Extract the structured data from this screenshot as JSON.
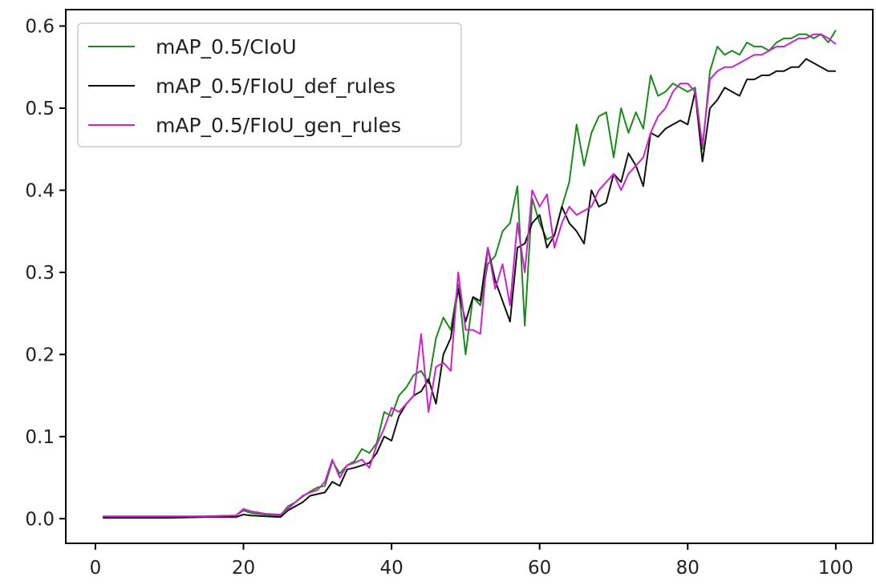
{
  "chart_data": {
    "type": "line",
    "title": "",
    "xlabel": "",
    "ylabel": "",
    "xlim": [
      -4,
      105
    ],
    "ylim": [
      -0.03,
      0.62
    ],
    "grid": false,
    "legend_position": "top-left",
    "x_ticks": [
      0,
      20,
      40,
      60,
      80,
      100
    ],
    "x_tick_labels": [
      "0",
      "20",
      "40",
      "60",
      "80",
      "100"
    ],
    "y_ticks": [
      0.0,
      0.1,
      0.2,
      0.3,
      0.4,
      0.5,
      0.6
    ],
    "y_tick_labels": [
      "0.0",
      "0.1",
      "0.2",
      "0.3",
      "0.4",
      "0.5",
      "0.6"
    ],
    "series": [
      {
        "name": "mAP_0.5/CIoU",
        "color": "#1a8a1a",
        "points": [
          [
            1,
            0.002
          ],
          [
            5,
            0.002
          ],
          [
            10,
            0.002
          ],
          [
            15,
            0.003
          ],
          [
            19,
            0.004
          ],
          [
            20,
            0.01
          ],
          [
            21,
            0.007
          ],
          [
            23,
            0.005
          ],
          [
            25,
            0.004
          ],
          [
            26,
            0.015
          ],
          [
            27,
            0.02
          ],
          [
            28,
            0.027
          ],
          [
            29,
            0.033
          ],
          [
            30,
            0.038
          ],
          [
            31,
            0.04
          ],
          [
            32,
            0.07
          ],
          [
            33,
            0.055
          ],
          [
            34,
            0.065
          ],
          [
            35,
            0.07
          ],
          [
            36,
            0.085
          ],
          [
            37,
            0.08
          ],
          [
            38,
            0.092
          ],
          [
            39,
            0.13
          ],
          [
            40,
            0.125
          ],
          [
            41,
            0.15
          ],
          [
            42,
            0.16
          ],
          [
            43,
            0.175
          ],
          [
            44,
            0.18
          ],
          [
            45,
            0.165
          ],
          [
            46,
            0.22
          ],
          [
            47,
            0.245
          ],
          [
            48,
            0.23
          ],
          [
            49,
            0.285
          ],
          [
            50,
            0.2
          ],
          [
            51,
            0.27
          ],
          [
            52,
            0.26
          ],
          [
            53,
            0.31
          ],
          [
            54,
            0.32
          ],
          [
            55,
            0.35
          ],
          [
            56,
            0.36
          ],
          [
            57,
            0.405
          ],
          [
            58,
            0.235
          ],
          [
            59,
            0.39
          ],
          [
            60,
            0.36
          ],
          [
            61,
            0.34
          ],
          [
            62,
            0.345
          ],
          [
            63,
            0.38
          ],
          [
            64,
            0.41
          ],
          [
            65,
            0.48
          ],
          [
            66,
            0.43
          ],
          [
            67,
            0.47
          ],
          [
            68,
            0.49
          ],
          [
            69,
            0.495
          ],
          [
            70,
            0.44
          ],
          [
            71,
            0.5
          ],
          [
            72,
            0.47
          ],
          [
            73,
            0.495
          ],
          [
            74,
            0.475
          ],
          [
            75,
            0.54
          ],
          [
            76,
            0.515
          ],
          [
            77,
            0.52
          ],
          [
            78,
            0.53
          ],
          [
            79,
            0.525
          ],
          [
            80,
            0.52
          ],
          [
            81,
            0.525
          ],
          [
            82,
            0.45
          ],
          [
            83,
            0.545
          ],
          [
            84,
            0.575
          ],
          [
            85,
            0.565
          ],
          [
            86,
            0.57
          ],
          [
            87,
            0.565
          ],
          [
            88,
            0.58
          ],
          [
            89,
            0.575
          ],
          [
            90,
            0.575
          ],
          [
            91,
            0.57
          ],
          [
            92,
            0.58
          ],
          [
            93,
            0.585
          ],
          [
            94,
            0.585
          ],
          [
            95,
            0.59
          ],
          [
            96,
            0.59
          ],
          [
            97,
            0.585
          ],
          [
            98,
            0.59
          ],
          [
            99,
            0.58
          ],
          [
            100,
            0.595
          ]
        ]
      },
      {
        "name": "mAP_0.5/FIoU_def_rules",
        "color": "#111111",
        "points": [
          [
            1,
            0.001
          ],
          [
            5,
            0.001
          ],
          [
            10,
            0.001
          ],
          [
            15,
            0.002
          ],
          [
            19,
            0.002
          ],
          [
            20,
            0.005
          ],
          [
            21,
            0.004
          ],
          [
            23,
            0.003
          ],
          [
            25,
            0.002
          ],
          [
            26,
            0.01
          ],
          [
            27,
            0.015
          ],
          [
            28,
            0.02
          ],
          [
            29,
            0.028
          ],
          [
            30,
            0.03
          ],
          [
            31,
            0.032
          ],
          [
            32,
            0.045
          ],
          [
            33,
            0.04
          ],
          [
            34,
            0.06
          ],
          [
            35,
            0.062
          ],
          [
            36,
            0.065
          ],
          [
            37,
            0.068
          ],
          [
            38,
            0.08
          ],
          [
            39,
            0.1
          ],
          [
            40,
            0.095
          ],
          [
            41,
            0.125
          ],
          [
            42,
            0.14
          ],
          [
            43,
            0.15
          ],
          [
            44,
            0.155
          ],
          [
            45,
            0.17
          ],
          [
            46,
            0.14
          ],
          [
            47,
            0.2
          ],
          [
            48,
            0.22
          ],
          [
            49,
            0.28
          ],
          [
            50,
            0.24
          ],
          [
            51,
            0.27
          ],
          [
            52,
            0.265
          ],
          [
            53,
            0.33
          ],
          [
            54,
            0.29
          ],
          [
            55,
            0.265
          ],
          [
            56,
            0.24
          ],
          [
            57,
            0.33
          ],
          [
            58,
            0.335
          ],
          [
            59,
            0.36
          ],
          [
            60,
            0.37
          ],
          [
            61,
            0.33
          ],
          [
            62,
            0.345
          ],
          [
            63,
            0.38
          ],
          [
            64,
            0.36
          ],
          [
            65,
            0.35
          ],
          [
            66,
            0.335
          ],
          [
            67,
            0.4
          ],
          [
            68,
            0.38
          ],
          [
            69,
            0.385
          ],
          [
            70,
            0.42
          ],
          [
            71,
            0.41
          ],
          [
            72,
            0.445
          ],
          [
            73,
            0.43
          ],
          [
            74,
            0.405
          ],
          [
            75,
            0.47
          ],
          [
            76,
            0.465
          ],
          [
            77,
            0.475
          ],
          [
            78,
            0.48
          ],
          [
            79,
            0.485
          ],
          [
            80,
            0.48
          ],
          [
            81,
            0.52
          ],
          [
            82,
            0.435
          ],
          [
            83,
            0.5
          ],
          [
            84,
            0.51
          ],
          [
            85,
            0.525
          ],
          [
            86,
            0.52
          ],
          [
            87,
            0.515
          ],
          [
            88,
            0.535
          ],
          [
            89,
            0.535
          ],
          [
            90,
            0.54
          ],
          [
            91,
            0.54
          ],
          [
            92,
            0.545
          ],
          [
            93,
            0.545
          ],
          [
            94,
            0.55
          ],
          [
            95,
            0.55
          ],
          [
            96,
            0.56
          ],
          [
            97,
            0.555
          ],
          [
            98,
            0.55
          ],
          [
            99,
            0.545
          ],
          [
            100,
            0.545
          ]
        ]
      },
      {
        "name": "mAP_0.5/FIoU_gen_rules",
        "color": "#cc22cc",
        "points": [
          [
            1,
            0.003
          ],
          [
            5,
            0.003
          ],
          [
            10,
            0.003
          ],
          [
            15,
            0.003
          ],
          [
            19,
            0.004
          ],
          [
            20,
            0.012
          ],
          [
            21,
            0.009
          ],
          [
            23,
            0.006
          ],
          [
            25,
            0.005
          ],
          [
            26,
            0.012
          ],
          [
            27,
            0.02
          ],
          [
            28,
            0.028
          ],
          [
            29,
            0.032
          ],
          [
            30,
            0.035
          ],
          [
            31,
            0.045
          ],
          [
            32,
            0.072
          ],
          [
            33,
            0.05
          ],
          [
            34,
            0.065
          ],
          [
            35,
            0.068
          ],
          [
            36,
            0.072
          ],
          [
            37,
            0.062
          ],
          [
            38,
            0.09
          ],
          [
            39,
            0.11
          ],
          [
            40,
            0.135
          ],
          [
            41,
            0.13
          ],
          [
            42,
            0.14
          ],
          [
            43,
            0.15
          ],
          [
            44,
            0.225
          ],
          [
            45,
            0.13
          ],
          [
            46,
            0.185
          ],
          [
            47,
            0.19
          ],
          [
            48,
            0.18
          ],
          [
            49,
            0.3
          ],
          [
            50,
            0.23
          ],
          [
            51,
            0.23
          ],
          [
            52,
            0.225
          ],
          [
            53,
            0.33
          ],
          [
            54,
            0.28
          ],
          [
            55,
            0.31
          ],
          [
            56,
            0.26
          ],
          [
            57,
            0.36
          ],
          [
            58,
            0.3
          ],
          [
            59,
            0.4
          ],
          [
            60,
            0.38
          ],
          [
            61,
            0.395
          ],
          [
            62,
            0.33
          ],
          [
            63,
            0.36
          ],
          [
            64,
            0.38
          ],
          [
            65,
            0.37
          ],
          [
            66,
            0.375
          ],
          [
            67,
            0.38
          ],
          [
            68,
            0.4
          ],
          [
            69,
            0.41
          ],
          [
            70,
            0.42
          ],
          [
            71,
            0.4
          ],
          [
            72,
            0.42
          ],
          [
            73,
            0.43
          ],
          [
            74,
            0.44
          ],
          [
            75,
            0.47
          ],
          [
            76,
            0.49
          ],
          [
            77,
            0.5
          ],
          [
            78,
            0.52
          ],
          [
            79,
            0.53
          ],
          [
            80,
            0.53
          ],
          [
            81,
            0.52
          ],
          [
            82,
            0.455
          ],
          [
            83,
            0.535
          ],
          [
            84,
            0.545
          ],
          [
            85,
            0.55
          ],
          [
            86,
            0.55
          ],
          [
            87,
            0.555
          ],
          [
            88,
            0.56
          ],
          [
            89,
            0.565
          ],
          [
            90,
            0.565
          ],
          [
            91,
            0.57
          ],
          [
            92,
            0.575
          ],
          [
            93,
            0.575
          ],
          [
            94,
            0.58
          ],
          [
            95,
            0.585
          ],
          [
            96,
            0.585
          ],
          [
            97,
            0.59
          ],
          [
            98,
            0.59
          ],
          [
            99,
            0.585
          ],
          [
            100,
            0.578
          ]
        ]
      }
    ]
  }
}
